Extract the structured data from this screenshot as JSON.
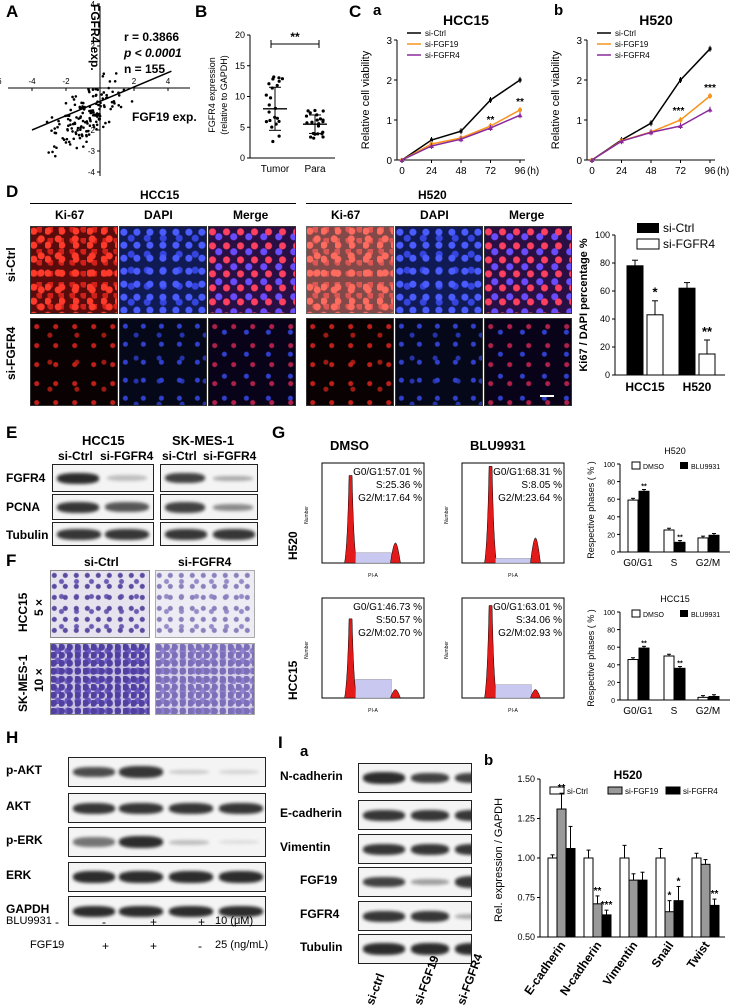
{
  "labels": {
    "A": "A",
    "B": "B",
    "C": "C",
    "Ca": "a",
    "Cb": "b",
    "D": "D",
    "E": "E",
    "F": "F",
    "G": "G",
    "H": "H",
    "I": "I",
    "Ia": "a",
    "Ib": "b"
  },
  "panelA": {
    "ylabel": "FGFR4 exp.",
    "xlabel": "FGF19 exp.",
    "r": "r = 0.3866",
    "p": "p < 0.0001",
    "n": "n = 155",
    "xticks": [
      "-6",
      "-4",
      "-2",
      "2",
      "4"
    ],
    "yticks": [
      "4",
      "2",
      "-2",
      "-3",
      "-4"
    ]
  },
  "panelB": {
    "ylabel1": "FGFR4 expression",
    "ylabel2": "(relative to GAPDH)",
    "sig": "**",
    "cats": [
      "Tumor",
      "Para"
    ],
    "yticks": [
      "0",
      "5",
      "10",
      "15",
      "20"
    ]
  },
  "panelCa": {
    "title": "HCC15",
    "ylabel": "Relative cell viability",
    "xunit": "(h)",
    "xticks": [
      "0",
      "24",
      "48",
      "72",
      "96"
    ],
    "yticks": [
      "0",
      "1",
      "2",
      "3"
    ],
    "legend": [
      "si-Ctrl",
      "si-FGF19",
      "si-FGFR4"
    ],
    "sig72": "**",
    "sig96": "**"
  },
  "panelCb": {
    "title": "H520",
    "ylabel": "Relative cell viability",
    "xunit": "(h)",
    "xticks": [
      "0",
      "24",
      "48",
      "72",
      "96"
    ],
    "yticks": [
      "0",
      "1",
      "2",
      "3"
    ],
    "legend": [
      "si-Ctrl",
      "si-FGF19",
      "si-FGFR4"
    ],
    "sig72": "***",
    "sig96": "***"
  },
  "panelD": {
    "cell1": "HCC15",
    "cell2": "H520",
    "cols": [
      "Ki-67",
      "DAPI",
      "Merge",
      "Ki-67",
      "DAPI",
      "Merge"
    ],
    "rows": [
      "si-Ctrl",
      "si-FGFR4"
    ],
    "ylabel": "Ki67 / DAPI percentage %",
    "legend": [
      "si-Ctrl",
      "si-FGFR4"
    ],
    "cats": [
      "HCC15",
      "H520"
    ],
    "yticks": [
      "0",
      "20",
      "40",
      "60",
      "80",
      "100"
    ],
    "sig1": "*",
    "sig2": "**"
  },
  "panelE": {
    "cell1": "HCC15",
    "cell2": "SK-MES-1",
    "lanes": [
      "si-Ctrl",
      "si-FGFR4",
      "si-Ctrl",
      "si-FGFR4"
    ],
    "rows": [
      "FGFR4",
      "PCNA",
      "Tubulin"
    ]
  },
  "panelF": {
    "cols": [
      "si-Ctrl",
      "si-FGFR4"
    ],
    "row1a": "HCC15",
    "row1b": "5 ×",
    "row2a": "SK-MES-1",
    "row2b": "10 ×"
  },
  "panelG": {
    "col1": "DMSO",
    "col2": "BLU9931",
    "row1": "H520",
    "row2": "HCC15",
    "ylabel": "Number",
    "xlabel": "PI-A",
    "h520_dmso": [
      "G0/G1:57.01 %",
      "S:25.36 %",
      "G2/M:17.64 %"
    ],
    "h520_blu": [
      "G0/G1:68.31 %",
      "S:8.05 %",
      "G2/M:23.64 %"
    ],
    "hcc15_dmso": [
      "G0/G1:46.73 %",
      "S:50.57 %",
      "G2/M:02.70 %"
    ],
    "hcc15_blu": [
      "G0/G1:63.01 %",
      "S:34.06 %",
      "G2/M:02.93 %"
    ],
    "bar1title": "H520",
    "bar2title": "HCC15",
    "barylabel": "Respective phases ( % )",
    "legend": [
      "DMSO",
      "BLU9931"
    ],
    "cats": [
      "G0/G1",
      "S",
      "G2/M"
    ],
    "yticks": [
      "0",
      "20",
      "40",
      "60",
      "80",
      "100"
    ],
    "sig": "**"
  },
  "panelH": {
    "rows": [
      "p-AKT",
      "AKT",
      "p-ERK",
      "ERK",
      "GAPDH"
    ],
    "treat1": "BLU9931",
    "treat2": "FGF19",
    "t1": [
      "-",
      "-",
      "+",
      "+"
    ],
    "t2": [
      "-",
      "+",
      "+",
      "-"
    ],
    "unit1": "10 (μM)",
    "unit2": "25 (ng/mL)"
  },
  "panelIa": {
    "rows": [
      "N-cadherin",
      "E-cadherin",
      "Vimentin",
      "FGF19",
      "FGFR4",
      "Tubulin"
    ],
    "lanes": [
      "si-ctrl",
      "si-FGF19",
      "si-FGFR4"
    ]
  },
  "panelIb": {
    "title": "H520",
    "ylabel": "Rel. expression / GAPDH",
    "legend": [
      "si-Ctrl",
      "si-FGF19",
      "si-FGFR4"
    ],
    "cats": [
      "E-cadherin",
      "N-cadherin",
      "Vimentin",
      "Snail",
      "Twist"
    ],
    "yticks": [
      "0.50",
      "0.75",
      "1.00",
      "1.25",
      "1.50"
    ]
  },
  "chart_data": [
    {
      "type": "scatter",
      "panel": "A",
      "title": "",
      "xlabel": "FGF19 exp.",
      "ylabel": "FGFR4 exp.",
      "xlim": [
        -6,
        4
      ],
      "ylim": [
        -4,
        4
      ],
      "n": 155,
      "r": 0.3866
    },
    {
      "type": "scatter",
      "panel": "B",
      "title": "",
      "ylabel": "FGFR4 expression (relative to GAPDH)",
      "categories": [
        "Tumor",
        "Para"
      ],
      "means": [
        8,
        5.5
      ],
      "sd": [
        3.5,
        1.5
      ],
      "ylim": [
        0,
        20
      ]
    },
    {
      "type": "line",
      "panel": "C-a",
      "title": "HCC15",
      "x": [
        0,
        24,
        48,
        72,
        96
      ],
      "ylim": [
        0,
        3
      ],
      "series": [
        {
          "name": "si-Ctrl",
          "values": [
            0,
            0.5,
            0.72,
            1.5,
            2.0
          ]
        },
        {
          "name": "si-FGF19",
          "values": [
            0,
            0.4,
            0.55,
            0.85,
            1.25
          ]
        },
        {
          "name": "si-FGFR4",
          "values": [
            0,
            0.35,
            0.52,
            0.8,
            1.12
          ]
        }
      ]
    },
    {
      "type": "line",
      "panel": "C-b",
      "title": "H520",
      "x": [
        0,
        24,
        48,
        72,
        96
      ],
      "ylim": [
        0,
        3
      ],
      "series": [
        {
          "name": "si-Ctrl",
          "values": [
            0,
            0.5,
            0.92,
            2.0,
            2.78
          ]
        },
        {
          "name": "si-FGF19",
          "values": [
            0,
            0.48,
            0.7,
            1.0,
            1.6
          ]
        },
        {
          "name": "si-FGFR4",
          "values": [
            0,
            0.47,
            0.69,
            0.85,
            1.26
          ]
        }
      ]
    },
    {
      "type": "bar",
      "panel": "D",
      "ylabel": "Ki67 / DAPI percentage %",
      "categories": [
        "HCC15",
        "H520"
      ],
      "ylim": [
        0,
        100
      ],
      "series": [
        {
          "name": "si-Ctrl",
          "values": [
            78,
            62
          ]
        },
        {
          "name": "si-FGFR4",
          "values": [
            43,
            15
          ]
        }
      ]
    },
    {
      "type": "bar",
      "panel": "G-H520",
      "title": "H520",
      "categories": [
        "G0/G1",
        "S",
        "G2/M"
      ],
      "ylim": [
        0,
        100
      ],
      "series": [
        {
          "name": "DMSO",
          "values": [
            59,
            25,
            16
          ]
        },
        {
          "name": "BLU9931",
          "values": [
            69,
            11,
            19
          ]
        }
      ]
    },
    {
      "type": "bar",
      "panel": "G-HCC15",
      "title": "HCC15",
      "categories": [
        "G0/G1",
        "S",
        "G2/M"
      ],
      "ylim": [
        0,
        100
      ],
      "series": [
        {
          "name": "DMSO",
          "values": [
            46,
            50,
            3
          ]
        },
        {
          "name": "BLU9931",
          "values": [
            59,
            36,
            4
          ]
        }
      ]
    },
    {
      "type": "bar",
      "panel": "I-b",
      "title": "H520",
      "categories": [
        "E-cadherin",
        "N-cadherin",
        "Vimentin",
        "Snail",
        "Twist"
      ],
      "ylim": [
        0.5,
        1.5
      ],
      "series": [
        {
          "name": "si-Ctrl",
          "values": [
            1.0,
            1.0,
            1.0,
            1.0,
            1.0
          ]
        },
        {
          "name": "si-FGF19",
          "values": [
            1.31,
            0.71,
            0.86,
            0.66,
            0.96
          ]
        },
        {
          "name": "si-FGFR4",
          "values": [
            1.06,
            0.64,
            0.86,
            0.73,
            0.7
          ]
        }
      ]
    }
  ]
}
